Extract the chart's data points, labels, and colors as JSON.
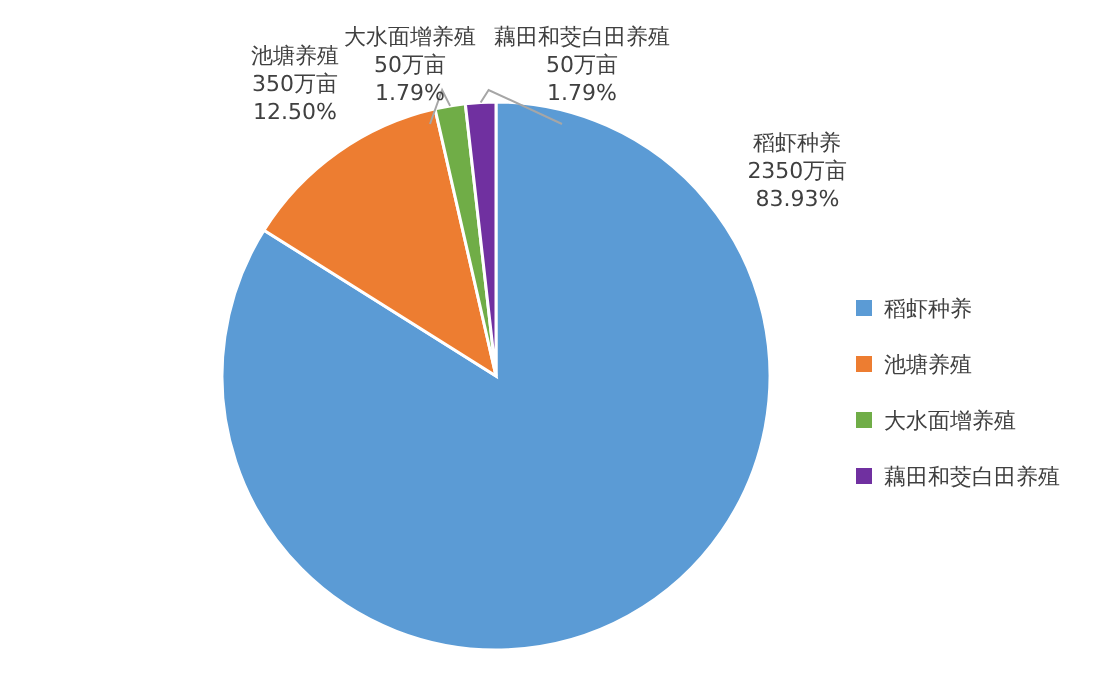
{
  "chart_data": {
    "type": "pie",
    "categories": [
      "稻虾种养",
      "池塘养殖",
      "大水面增养殖",
      "藕田和茭白田养殖"
    ],
    "values": [
      2350,
      350,
      50,
      50
    ],
    "colors": [
      "#5b9bd5",
      "#ed7d31",
      "#70ad47",
      "#7030a0"
    ],
    "value_labels": [
      "2350万亩\n83.93%",
      "350万亩\n12.50%",
      "50万亩\n1.79%",
      "50万亩\n1.79%"
    ],
    "legend": "right"
  }
}
